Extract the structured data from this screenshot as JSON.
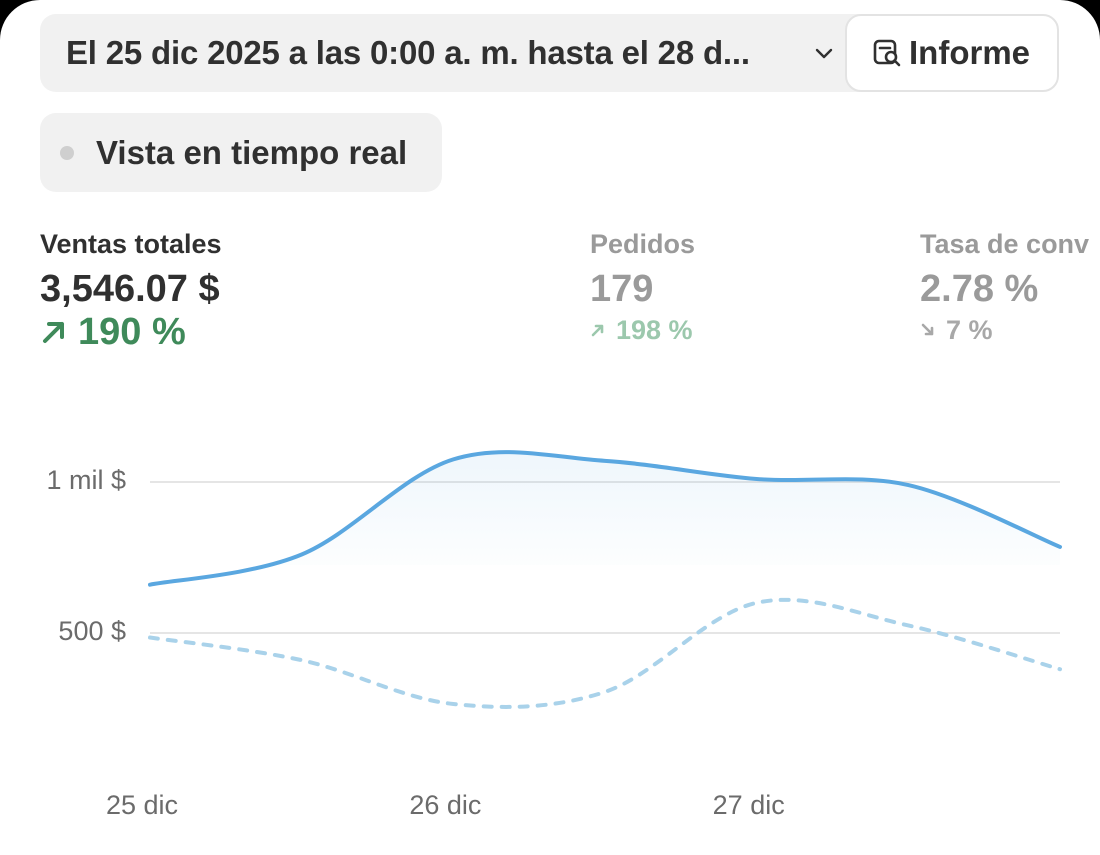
{
  "header": {
    "date_range_label": "El 25 dic 2025 a las 0:00 a. m. hasta el 28 d...",
    "report_label": "Informe",
    "realtime_label": "Vista en tiempo real"
  },
  "metrics": [
    {
      "title": "Ventas totales",
      "value": "3,546.07 $",
      "change": "190 %",
      "direction": "up",
      "active": true
    },
    {
      "title": "Pedidos",
      "value": "179",
      "change": "198 %",
      "direction": "up",
      "active": false
    },
    {
      "title": "Tasa de conv",
      "value": "2.78 %",
      "change": "7 %",
      "direction": "down",
      "active": false
    }
  ],
  "colors": {
    "line_current": "#5aa7e0",
    "line_previous": "#a9d2ea",
    "positive": "#3f8a5a",
    "gridline": "#e5e5e5"
  },
  "chart_data": {
    "type": "line",
    "y_ticks": [
      "1 mil $",
      "500 $"
    ],
    "x_ticks": [
      "25 dic",
      "26 dic",
      "27 dic"
    ],
    "x": [
      0,
      0.5,
      1,
      1.5,
      2,
      2.5,
      3
    ],
    "series": [
      {
        "style": "solid",
        "values": [
          660,
          760,
          1075,
          1070,
          1010,
          990,
          785
        ]
      },
      {
        "style": "dotted",
        "values": [
          485,
          410,
          265,
          305,
          600,
          525,
          380
        ]
      }
    ],
    "ylim": [
      0,
      1200
    ],
    "grid": true,
    "legend": "none"
  }
}
